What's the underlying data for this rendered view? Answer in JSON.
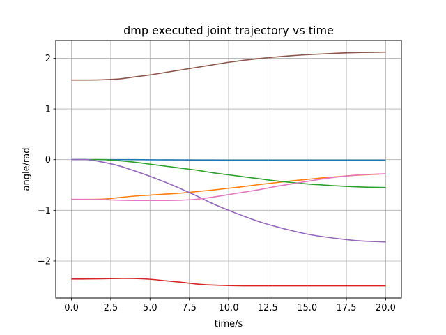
{
  "chart_data": {
    "type": "line",
    "title": "dmp executed joint trajectory vs time",
    "xlabel": "time/s",
    "ylabel": "angle/rad",
    "xlim": [
      -1.0,
      21.0
    ],
    "ylim": [
      -2.73,
      2.35
    ],
    "xticks": [
      0.0,
      2.5,
      5.0,
      7.5,
      10.0,
      12.5,
      15.0,
      17.5,
      20.0
    ],
    "xtick_labels": [
      "0.0",
      "2.5",
      "5.0",
      "7.5",
      "10.0",
      "12.5",
      "15.0",
      "17.5",
      "20.0"
    ],
    "yticks": [
      -2,
      -1,
      0,
      1,
      2
    ],
    "ytick_labels": [
      "−2",
      "−1",
      "0",
      "1",
      "2"
    ],
    "grid": true,
    "x": [
      0,
      1,
      2,
      3,
      4,
      5,
      6,
      7,
      8,
      9,
      10,
      11,
      12,
      13,
      14,
      15,
      16,
      17,
      18,
      19,
      20
    ],
    "series": [
      {
        "color": "#1f77b4",
        "values": [
          0.0,
          0.0,
          0.0,
          0.0,
          0.0,
          -0.003,
          -0.005,
          -0.006,
          -0.008,
          -0.009,
          -0.01,
          -0.01,
          -0.01,
          -0.01,
          -0.01,
          -0.01,
          -0.01,
          -0.01,
          -0.01,
          -0.01,
          -0.01
        ]
      },
      {
        "color": "#ff7f0e",
        "values": [
          -0.785,
          -0.785,
          -0.78,
          -0.75,
          -0.72,
          -0.7,
          -0.68,
          -0.66,
          -0.63,
          -0.6,
          -0.565,
          -0.53,
          -0.49,
          -0.455,
          -0.42,
          -0.39,
          -0.36,
          -0.335,
          -0.31,
          -0.295,
          -0.28
        ]
      },
      {
        "color": "#2ca02c",
        "values": [
          0.0,
          0.0,
          0.0,
          -0.02,
          -0.05,
          -0.09,
          -0.13,
          -0.17,
          -0.21,
          -0.26,
          -0.3,
          -0.34,
          -0.38,
          -0.42,
          -0.45,
          -0.48,
          -0.5,
          -0.52,
          -0.535,
          -0.545,
          -0.55
        ]
      },
      {
        "color": "#d62728",
        "values": [
          -2.356,
          -2.355,
          -2.35,
          -2.345,
          -2.345,
          -2.36,
          -2.39,
          -2.42,
          -2.455,
          -2.475,
          -2.485,
          -2.49,
          -2.49,
          -2.49,
          -2.49,
          -2.49,
          -2.49,
          -2.49,
          -2.49,
          -2.49,
          -2.49
        ]
      },
      {
        "color": "#9467bd",
        "values": [
          0.0,
          0.0,
          -0.05,
          -0.12,
          -0.22,
          -0.33,
          -0.45,
          -0.58,
          -0.72,
          -0.87,
          -1.0,
          -1.12,
          -1.23,
          -1.32,
          -1.4,
          -1.47,
          -1.52,
          -1.56,
          -1.595,
          -1.615,
          -1.625
        ]
      },
      {
        "color": "#8c564b",
        "values": [
          1.57,
          1.57,
          1.575,
          1.59,
          1.63,
          1.67,
          1.72,
          1.77,
          1.82,
          1.87,
          1.92,
          1.96,
          1.995,
          2.025,
          2.05,
          2.07,
          2.085,
          2.1,
          2.11,
          2.115,
          2.12
        ]
      },
      {
        "color": "#e377c2",
        "values": [
          -0.785,
          -0.785,
          -0.79,
          -0.8,
          -0.805,
          -0.805,
          -0.805,
          -0.8,
          -0.78,
          -0.74,
          -0.69,
          -0.64,
          -0.59,
          -0.53,
          -0.48,
          -0.43,
          -0.38,
          -0.34,
          -0.31,
          -0.29,
          -0.28
        ]
      }
    ]
  }
}
